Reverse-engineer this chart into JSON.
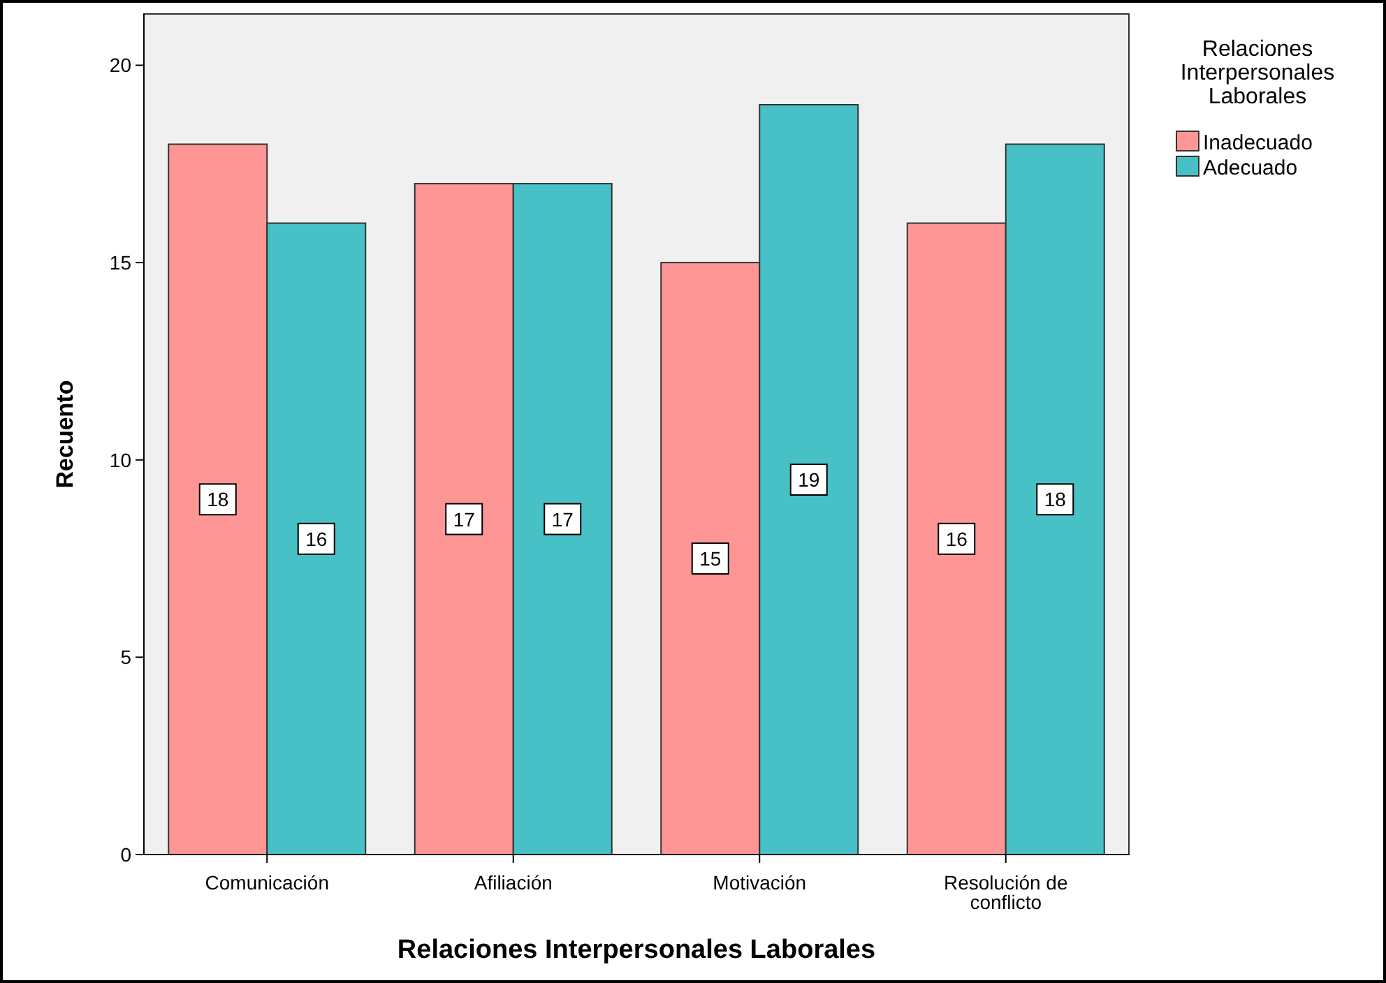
{
  "chart_data": {
    "type": "bar",
    "xlabel": "Relaciones Interpersonales Laborales",
    "ylabel": "Recuento",
    "legend_title": "Relaciones Interpersonales Laborales",
    "categories": [
      "Comunicación",
      "Afiliación",
      "Motivación",
      "Resolución de conflicto"
    ],
    "series": [
      {
        "name": "Inadecuado",
        "color": "#fe9696",
        "values": [
          18,
          17,
          15,
          16
        ]
      },
      {
        "name": "Adecuado",
        "color": "#47c1c6",
        "values": [
          16,
          17,
          19,
          18
        ]
      }
    ],
    "ylim": [
      0,
      21.3
    ],
    "yticks": [
      0,
      5,
      10,
      15,
      20
    ],
    "data_labels": true,
    "legend": "top right",
    "grid": false
  }
}
